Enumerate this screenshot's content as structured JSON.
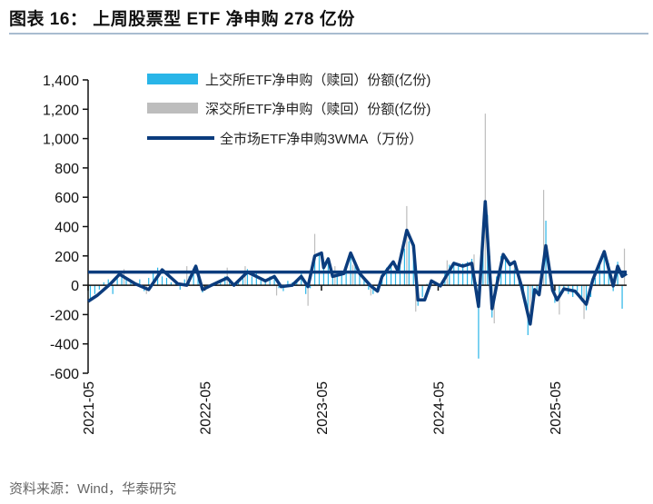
{
  "title": "图表 16：  上周股票型 ETF 净申购 278 亿份",
  "source": "资料来源：Wind，华泰研究",
  "chart_data": {
    "type": "bar+line",
    "title": "上周股票型 ETF 净申购 278 亿份",
    "x_unit": "week index since 2021-05",
    "ylim": [
      -600,
      1400
    ],
    "yticks": [
      1400,
      1200,
      1000,
      800,
      600,
      400,
      200,
      0,
      -200,
      -400,
      -600
    ],
    "ytick_labels": [
      "1,400",
      "1,200",
      "1,000",
      "800",
      "600",
      "400",
      "200",
      "0",
      "-200",
      "-400",
      "-600"
    ],
    "xlim": [
      0,
      240
    ],
    "xticks": [
      {
        "week": 0,
        "label": "2021-05"
      },
      {
        "week": 52,
        "label": "2022-05"
      },
      {
        "week": 104,
        "label": "2023-05"
      },
      {
        "week": 156,
        "label": "2024-05"
      },
      {
        "week": 208,
        "label": "2025-05"
      }
    ],
    "legend_position": "top-left",
    "reference_line": 90,
    "series": [
      {
        "name": "上交所ETF净申购（赎回）份额(亿份)",
        "type": "bar",
        "color": "#29b5e8",
        "points": [
          [
            1,
            -90
          ],
          [
            3,
            -60
          ],
          [
            5,
            -30
          ],
          [
            7,
            20
          ],
          [
            9,
            40
          ],
          [
            11,
            -60
          ],
          [
            13,
            60
          ],
          [
            15,
            70
          ],
          [
            17,
            40
          ],
          [
            19,
            30
          ],
          [
            21,
            20
          ],
          [
            23,
            40
          ],
          [
            25,
            -40
          ],
          [
            27,
            50
          ],
          [
            29,
            90
          ],
          [
            31,
            120
          ],
          [
            33,
            60
          ],
          [
            35,
            50
          ],
          [
            37,
            20
          ],
          [
            39,
            30
          ],
          [
            41,
            -30
          ],
          [
            43,
            40
          ],
          [
            45,
            60
          ],
          [
            47,
            110
          ],
          [
            49,
            90
          ],
          [
            51,
            -50
          ],
          [
            53,
            -20
          ],
          [
            55,
            10
          ],
          [
            57,
            20
          ],
          [
            59,
            40
          ],
          [
            61,
            60
          ],
          [
            63,
            30
          ],
          [
            65,
            -10
          ],
          [
            67,
            40
          ],
          [
            69,
            60
          ],
          [
            71,
            110
          ],
          [
            73,
            60
          ],
          [
            75,
            90
          ],
          [
            77,
            40
          ],
          [
            79,
            30
          ],
          [
            81,
            60
          ],
          [
            83,
            70
          ],
          [
            85,
            -20
          ],
          [
            87,
            -40
          ],
          [
            89,
            30
          ],
          [
            91,
            20
          ],
          [
            93,
            40
          ],
          [
            95,
            80
          ],
          [
            97,
            -60
          ],
          [
            99,
            -20
          ],
          [
            101,
            200
          ],
          [
            103,
            210
          ],
          [
            105,
            160
          ],
          [
            107,
            180
          ],
          [
            109,
            90
          ],
          [
            111,
            60
          ],
          [
            113,
            80
          ],
          [
            115,
            150
          ],
          [
            117,
            230
          ],
          [
            119,
            140
          ],
          [
            121,
            80
          ],
          [
            123,
            40
          ],
          [
            125,
            -30
          ],
          [
            127,
            -60
          ],
          [
            129,
            -40
          ],
          [
            131,
            50
          ],
          [
            133,
            120
          ],
          [
            135,
            150
          ],
          [
            137,
            90
          ],
          [
            139,
            150
          ],
          [
            141,
            250
          ],
          [
            143,
            300
          ],
          [
            145,
            200
          ],
          [
            147,
            -140
          ],
          [
            149,
            -80
          ],
          [
            151,
            10
          ],
          [
            153,
            40
          ],
          [
            155,
            20
          ],
          [
            157,
            -10
          ],
          [
            159,
            90
          ],
          [
            161,
            140
          ],
          [
            163,
            160
          ],
          [
            165,
            130
          ],
          [
            167,
            150
          ],
          [
            169,
            160
          ],
          [
            171,
            180
          ],
          [
            173,
            20
          ],
          [
            174,
            -500
          ],
          [
            176,
            300
          ],
          [
            178,
            480
          ],
          [
            179,
            200
          ],
          [
            180,
            -220
          ],
          [
            182,
            60
          ],
          [
            184,
            200
          ],
          [
            186,
            180
          ],
          [
            188,
            140
          ],
          [
            190,
            110
          ],
          [
            192,
            40
          ],
          [
            194,
            -80
          ],
          [
            196,
            -340
          ],
          [
            198,
            -120
          ],
          [
            200,
            -60
          ],
          [
            202,
            80
          ],
          [
            204,
            440
          ],
          [
            206,
            90
          ],
          [
            208,
            -120
          ],
          [
            210,
            -90
          ],
          [
            212,
            -40
          ],
          [
            214,
            -60
          ],
          [
            216,
            -80
          ],
          [
            218,
            -40
          ],
          [
            220,
            -110
          ],
          [
            222,
            -170
          ],
          [
            224,
            -80
          ],
          [
            226,
            50
          ],
          [
            228,
            140
          ],
          [
            230,
            200
          ],
          [
            232,
            150
          ],
          [
            234,
            -40
          ],
          [
            236,
            160
          ],
          [
            238,
            -160
          ]
        ]
      },
      {
        "name": "深交所ETF净申购（赎回）份额(亿份)",
        "type": "bar",
        "color": "#bdbdbd",
        "points": [
          [
            16,
            110
          ],
          [
            26,
            -60
          ],
          [
            44,
            130
          ],
          [
            62,
            120
          ],
          [
            70,
            130
          ],
          [
            84,
            -70
          ],
          [
            98,
            -140
          ],
          [
            101,
            350
          ],
          [
            110,
            130
          ],
          [
            118,
            140
          ],
          [
            126,
            -70
          ],
          [
            142,
            540
          ],
          [
            146,
            -180
          ],
          [
            160,
            170
          ],
          [
            172,
            210
          ],
          [
            177,
            1170
          ],
          [
            181,
            -260
          ],
          [
            190,
            170
          ],
          [
            197,
            -220
          ],
          [
            203,
            650
          ],
          [
            210,
            -200
          ],
          [
            221,
            -230
          ],
          [
            230,
            240
          ],
          [
            239,
            250
          ]
        ]
      },
      {
        "name": "全市场ETF净申购3WMA（万份）",
        "type": "line",
        "color": "#0b3c7d",
        "points": [
          [
            0,
            -110
          ],
          [
            4,
            -70
          ],
          [
            10,
            10
          ],
          [
            14,
            75
          ],
          [
            21,
            10
          ],
          [
            27,
            -30
          ],
          [
            33,
            105
          ],
          [
            40,
            10
          ],
          [
            44,
            0
          ],
          [
            48,
            130
          ],
          [
            51,
            -30
          ],
          [
            55,
            0
          ],
          [
            62,
            50
          ],
          [
            65,
            0
          ],
          [
            71,
            90
          ],
          [
            79,
            30
          ],
          [
            83,
            60
          ],
          [
            86,
            -10
          ],
          [
            91,
            0
          ],
          [
            95,
            60
          ],
          [
            98,
            -10
          ],
          [
            101,
            200
          ],
          [
            104,
            220
          ],
          [
            105,
            120
          ],
          [
            107,
            180
          ],
          [
            109,
            60
          ],
          [
            114,
            80
          ],
          [
            117,
            220
          ],
          [
            121,
            80
          ],
          [
            126,
            -5
          ],
          [
            129,
            -40
          ],
          [
            131,
            60
          ],
          [
            136,
            160
          ],
          [
            138,
            100
          ],
          [
            142,
            375
          ],
          [
            145,
            270
          ],
          [
            147,
            -100
          ],
          [
            150,
            -100
          ],
          [
            153,
            30
          ],
          [
            157,
            -5
          ],
          [
            163,
            150
          ],
          [
            167,
            130
          ],
          [
            171,
            150
          ],
          [
            174,
            -145
          ],
          [
            177,
            570
          ],
          [
            180,
            -160
          ],
          [
            182,
            -5
          ],
          [
            185,
            210
          ],
          [
            188,
            140
          ],
          [
            190,
            160
          ],
          [
            193,
            0
          ],
          [
            197,
            -265
          ],
          [
            199,
            -30
          ],
          [
            201,
            -65
          ],
          [
            204,
            270
          ],
          [
            207,
            -35
          ],
          [
            209,
            -100
          ],
          [
            212,
            -25
          ],
          [
            217,
            -40
          ],
          [
            222,
            -130
          ],
          [
            225,
            40
          ],
          [
            230,
            230
          ],
          [
            234,
            -5
          ],
          [
            236,
            130
          ],
          [
            238,
            60
          ],
          [
            240,
            80
          ]
        ]
      }
    ]
  }
}
